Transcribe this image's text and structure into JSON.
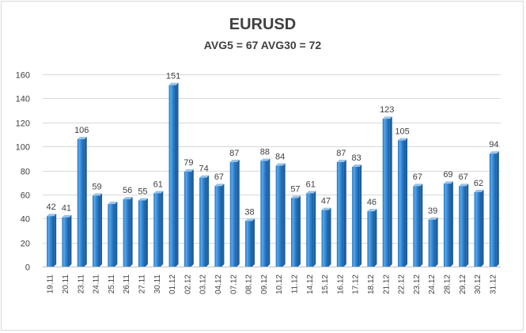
{
  "chart_data": {
    "type": "bar",
    "title": "EURUSD",
    "subtitle": "AVG5 = 67 AVG30 = 72",
    "xlabel": "",
    "ylabel": "",
    "ylim": [
      0,
      160
    ],
    "yticks": [
      0,
      20,
      40,
      60,
      80,
      100,
      120,
      140,
      160
    ],
    "grid": true,
    "legend": "none",
    "categories": [
      "19.11",
      "20.11",
      "23.11",
      "24.11",
      "25.11",
      "26.11",
      "27.11",
      "30.11",
      "01.12",
      "02.12",
      "03.12",
      "04.12",
      "07.12",
      "08.12",
      "09.12",
      "10.12",
      "11.12",
      "14.12",
      "15.12",
      "16.12",
      "17.12",
      "18.12",
      "21.12",
      "22.12",
      "23.12",
      "24.12",
      "28.12",
      "29.12",
      "30.12",
      "31.12"
    ],
    "values": [
      42,
      41,
      106,
      59,
      52,
      56,
      55,
      61,
      151,
      79,
      74,
      67,
      87,
      38,
      88,
      84,
      57,
      61,
      47,
      87,
      83,
      46,
      123,
      105,
      67,
      39,
      69,
      67,
      62,
      94
    ],
    "data_labels": [
      "42",
      "41",
      "106",
      "59",
      "",
      "56",
      "55",
      "61",
      "151",
      "79",
      "74",
      "67",
      "87",
      "38",
      "88",
      "84",
      "57",
      "61",
      "47",
      "87",
      "83",
      "46",
      "123",
      "105",
      "67",
      "39",
      "69",
      "67",
      "62",
      "94"
    ],
    "colors": {
      "bar_light": "#9dc3e6",
      "bar_main": "#2e86d6",
      "bar_dark": "#1f5f9e",
      "text": "#404040",
      "grid": "#d9d9d9"
    }
  }
}
